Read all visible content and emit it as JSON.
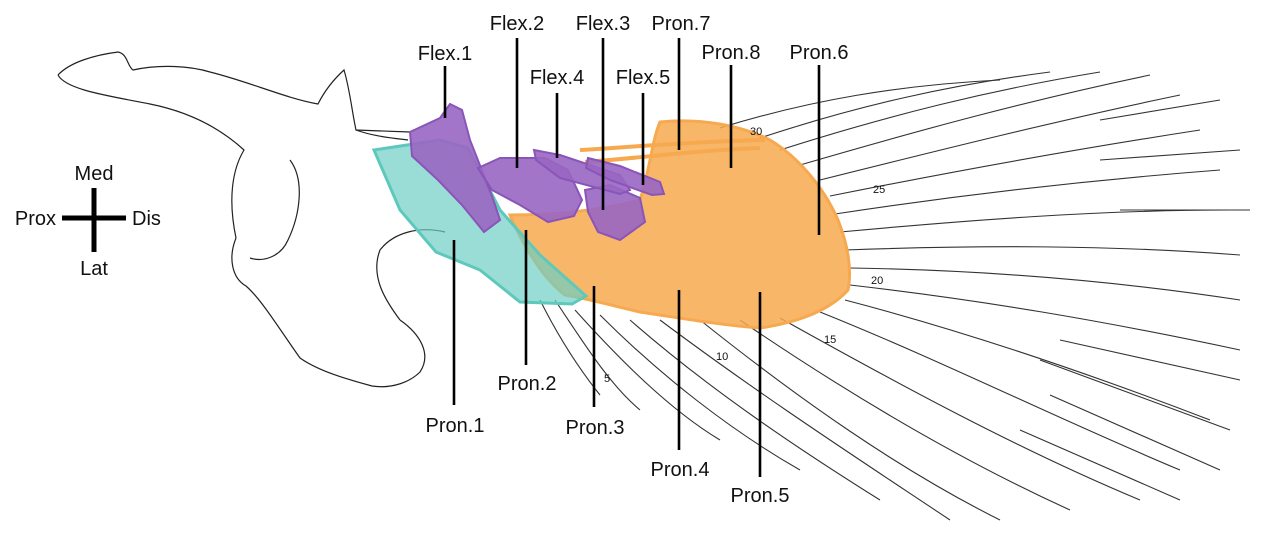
{
  "orientation": {
    "up": "Med",
    "left": "Prox",
    "right": "Dis",
    "down": "Lat"
  },
  "colors": {
    "flexor": "#9966c2",
    "pronator_orange": "#f7a94f",
    "pronator_teal": "#6ecfc4",
    "leader": "#000000"
  },
  "labels": {
    "flex1": "Flex.1",
    "flex2": "Flex.2",
    "flex3": "Flex.3",
    "flex4": "Flex.4",
    "flex5": "Flex.5",
    "pron1": "Pron.1",
    "pron2": "Pron.2",
    "pron3": "Pron.3",
    "pron4": "Pron.4",
    "pron5": "Pron.5",
    "pron6": "Pron.6",
    "pron7": "Pron.7",
    "pron8": "Pron.8"
  },
  "ray_numbers": [
    "5",
    "10",
    "15",
    "20",
    "25",
    "30"
  ]
}
